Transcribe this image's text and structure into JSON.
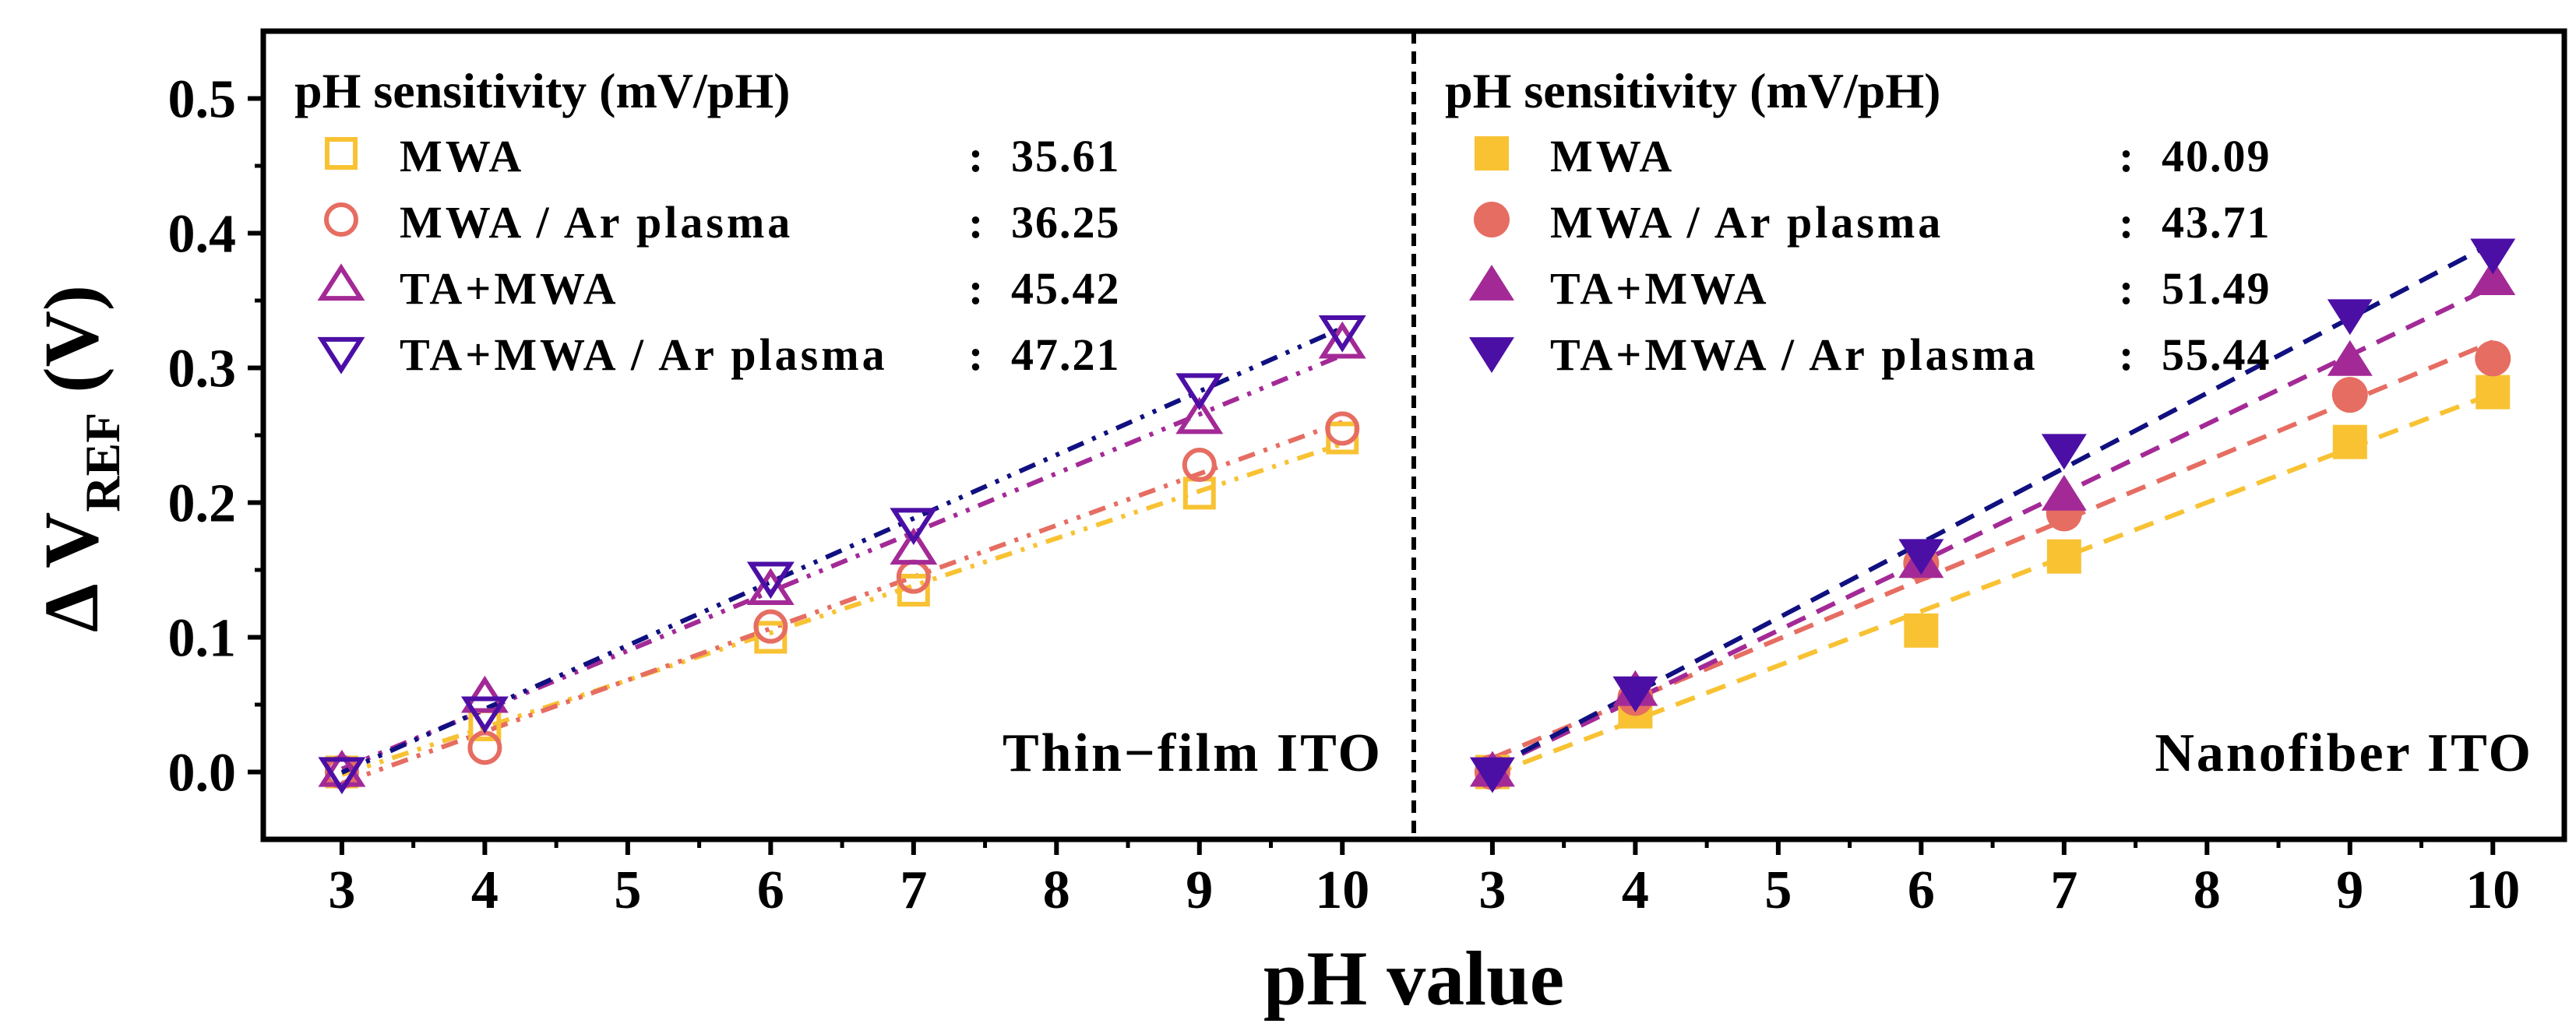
{
  "colors": {
    "MWA": "#f8c233",
    "MWA / Ar plasma": "#e66d62",
    "TA+MWA": "#a32a96",
    "TA+MWA / Ar plasma": "#4c0fa6",
    "fit_TA+MWA / Ar plasma": "#101080"
  },
  "chart_data": {
    "type": "scatter",
    "xlabel": "pH value",
    "ylabel": "Δ V",
    "ylabel_sub": "REF",
    "ylabel_suffix": " (V)",
    "xticks": [
      3,
      4,
      5,
      6,
      7,
      8,
      9,
      10
    ],
    "yticks": [
      "0.0",
      "0.1",
      "0.2",
      "0.3",
      "0.4",
      "0.5"
    ],
    "xlim": [
      2.45,
      10.5
    ],
    "ylim": [
      -0.05,
      0.55
    ],
    "panels": [
      {
        "name": "Thin-film ITO",
        "label": "Thin−film ITO",
        "legend_title": "pH sensitivity (mV/pH)",
        "marker_fill": "open",
        "fit_style": "dash-dot-dot",
        "x": [
          3,
          4,
          6,
          7,
          9,
          10
        ],
        "series": [
          {
            "name": "MWA",
            "legend_name": "MWA",
            "sensitivity": "35.61",
            "marker": "square",
            "values": [
              0.0,
              0.035,
              0.1,
              0.135,
              0.207,
              0.248
            ]
          },
          {
            "name": "MWA / Ar plasma",
            "legend_name": "MWA / Ar plasma",
            "sensitivity": "36.25",
            "marker": "circle",
            "values": [
              0.0,
              0.018,
              0.108,
              0.145,
              0.228,
              0.255
            ]
          },
          {
            "name": "TA+MWA",
            "legend_name": "TA+MWA",
            "sensitivity": "45.42",
            "marker": "triangle-up",
            "values": [
              0.0,
              0.055,
              0.135,
              0.165,
              0.262,
              0.318
            ]
          },
          {
            "name": "TA+MWA / Ar plasma",
            "legend_name": "TA+MWA / Ar plasma",
            "sensitivity": "47.21",
            "marker": "triangle-down",
            "values": [
              0.0,
              0.045,
              0.145,
              0.185,
              0.285,
              0.328
            ]
          }
        ]
      },
      {
        "name": "Nanofiber ITO",
        "label": "Nanofiber ITO",
        "legend_title": "pH sensitivity (mV/pH)",
        "marker_fill": "filled",
        "fit_style": "dashed",
        "x": [
          3,
          4,
          6,
          7,
          9,
          10
        ],
        "series": [
          {
            "name": "MWA",
            "legend_name": "MWA",
            "sensitivity": "40.09",
            "marker": "square",
            "values": [
              0.0,
              0.045,
              0.105,
              0.16,
              0.245,
              0.282
            ]
          },
          {
            "name": "MWA / Ar plasma",
            "legend_name": "MWA / Ar plasma",
            "sensitivity": "43.71",
            "marker": "circle",
            "values": [
              0.0,
              0.055,
              0.155,
              0.192,
              0.28,
              0.307
            ]
          },
          {
            "name": "TA+MWA",
            "legend_name": "TA+MWA",
            "sensitivity": "51.49",
            "marker": "triangle-up",
            "values": [
              0.0,
              0.06,
              0.155,
              0.205,
              0.305,
              0.365
            ]
          },
          {
            "name": "TA+MWA / Ar plasma",
            "legend_name": "TA+MWA / Ar plasma",
            "sensitivity": "55.44",
            "marker": "triangle-down",
            "values": [
              0.0,
              0.06,
              0.162,
              0.24,
              0.34,
              0.385
            ]
          }
        ]
      }
    ]
  }
}
